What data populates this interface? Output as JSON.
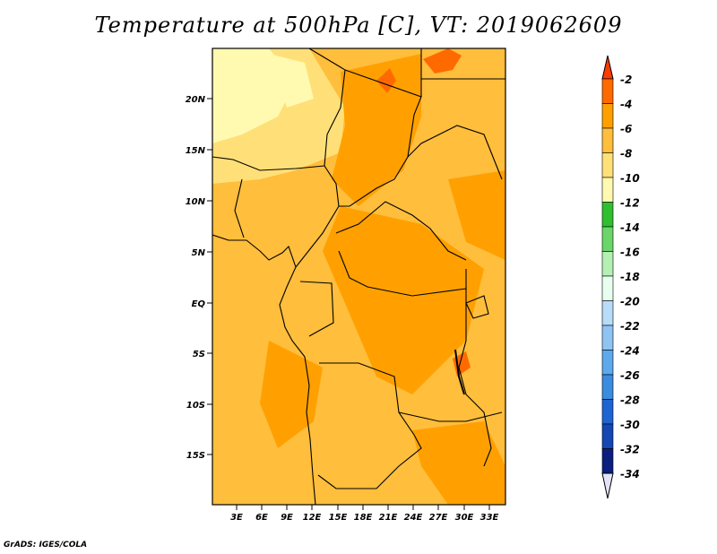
{
  "title": "Temperature at 500hPa [C], VT: 2019062609",
  "credit": "GrADS: IGES/COLA",
  "map": {
    "lat_ticks": [
      "20N",
      "15N",
      "10N",
      "5N",
      "EQ",
      "5S",
      "10S",
      "15S"
    ],
    "lon_ticks": [
      "3E",
      "6E",
      "9E",
      "12E",
      "15E",
      "18E",
      "21E",
      "24E",
      "27E",
      "30E",
      "33E"
    ]
  },
  "colorbar": {
    "labels": [
      "-2",
      "-4",
      "-6",
      "-8",
      "-10",
      "-12",
      "-14",
      "-16",
      "-18",
      "-20",
      "-22",
      "-24",
      "-26",
      "-28",
      "-30",
      "-32",
      "-34"
    ],
    "colors": [
      "#ff3c00",
      "#ff6a00",
      "#ffa000",
      "#ffbe3c",
      "#ffe078",
      "#fffab0",
      "#2fbf2f",
      "#6ad66a",
      "#b4f0b4",
      "#e8fff0",
      "#b8dcf8",
      "#8ec4f4",
      "#5ea8ec",
      "#3a8ce0",
      "#1e64d2",
      "#1446b4",
      "#0a1e7e",
      "#e4e4f8"
    ],
    "palette": {
      "orange_dark": "#ff6a00",
      "orange": "#ffa000",
      "orange_light": "#ffbe3c",
      "yellow": "#ffe078",
      "cream": "#fffab0"
    }
  }
}
